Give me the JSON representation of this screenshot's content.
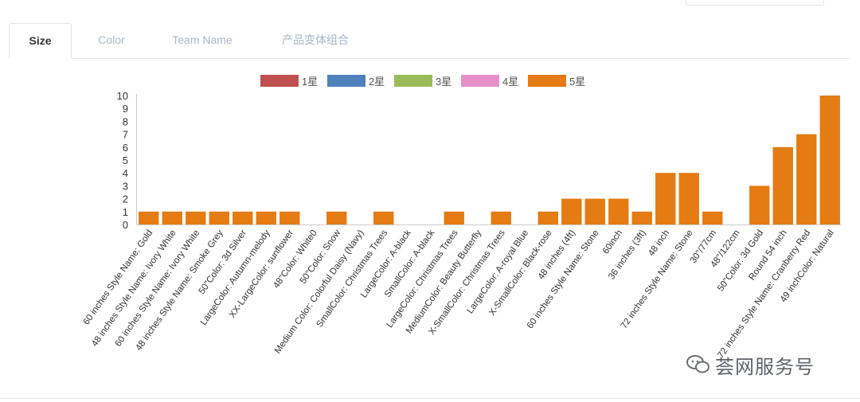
{
  "tabs": [
    {
      "label": "Size",
      "active": true
    },
    {
      "label": "Color",
      "active": false
    },
    {
      "label": "Team Name",
      "active": false
    },
    {
      "label": "产品变体组合",
      "active": false
    }
  ],
  "watermark": {
    "text": "荟网服务号",
    "icon": "wechat-icon"
  },
  "chart_data": {
    "type": "bar",
    "title": "",
    "xlabel": "",
    "ylabel": "",
    "ylim": [
      0,
      10
    ],
    "yticks": [
      0,
      1,
      2,
      3,
      4,
      5,
      6,
      7,
      8,
      9,
      10
    ],
    "grid": false,
    "legend_position": "top-center",
    "categories": [
      "60 inches Style Name: Gold",
      "48 inches Style Name: Ivory White",
      "60 inches Style Name: Ivory White",
      "48 inches Style Name: Smoke Grey",
      "50\"Color: 3d Silver",
      "LargeColor: Autumn-melody",
      "XX-LargeColor: sunflower",
      "48\"Color: White0",
      "50\"Color: Snow",
      "Medium Color: Colorful Daisy (Navy)",
      "SmallColor: Christmas Trees",
      "LargeColor: A-black",
      "SmallColor: A-black",
      "LargeColor: Christmas Trees",
      "MediumColor: Beauty Butterfly",
      "X-SmallColor: Christmas Trees",
      "LargeColor: A-royal Blue",
      "X-SmallColor: Black-rose",
      "48 inches (4ft)",
      "60 inches Style Name: Stone",
      "60inch",
      "36 inches (3ft)",
      "48 inch",
      "72 inches Style Name: Stone",
      "30\"/77cm",
      "48\"/122cm",
      "50\"Color: 3d Gold",
      "Round 54 inch",
      "72 inches Style Name: Cranberry Red",
      "49 inchColor: Natural"
    ],
    "series": [
      {
        "name": "1星",
        "color": "#c0504d",
        "values": [
          0,
          0,
          0,
          0,
          0,
          0,
          0,
          0,
          0,
          0,
          0,
          0,
          0,
          0,
          0,
          0,
          0,
          0,
          0,
          0,
          0,
          0,
          0,
          0,
          0,
          0,
          0,
          0,
          0,
          0
        ]
      },
      {
        "name": "2星",
        "color": "#4f81bd",
        "values": [
          0,
          0,
          0,
          0,
          0,
          0,
          0,
          0,
          0,
          0,
          0,
          0,
          0,
          0,
          0,
          0,
          0,
          0,
          0,
          0,
          0,
          0,
          0,
          0,
          0,
          0,
          0,
          0,
          0,
          0
        ]
      },
      {
        "name": "3星",
        "color": "#9bbb59",
        "values": [
          0,
          0,
          0,
          0,
          0,
          0,
          0,
          0,
          0,
          0,
          0,
          0,
          0,
          0,
          0,
          0,
          0,
          0,
          0,
          0,
          0,
          0,
          0,
          0,
          0,
          0,
          0,
          0,
          0,
          0
        ]
      },
      {
        "name": "4星",
        "color": "#e88fc9",
        "values": [
          0,
          0,
          0,
          0,
          0,
          0,
          0,
          0,
          0,
          0,
          0,
          0,
          0,
          0,
          0,
          0,
          0,
          0,
          0,
          0,
          0,
          0,
          0,
          0,
          0,
          0,
          0,
          0,
          0,
          0
        ]
      },
      {
        "name": "5星",
        "color": "#e57b13",
        "values": [
          1,
          1,
          1,
          1,
          1,
          1,
          1,
          0,
          1,
          0,
          1,
          0,
          0,
          1,
          0,
          1,
          0,
          1,
          2,
          2,
          2,
          1,
          4,
          4,
          1,
          0,
          3,
          6,
          7,
          10
        ]
      }
    ]
  }
}
